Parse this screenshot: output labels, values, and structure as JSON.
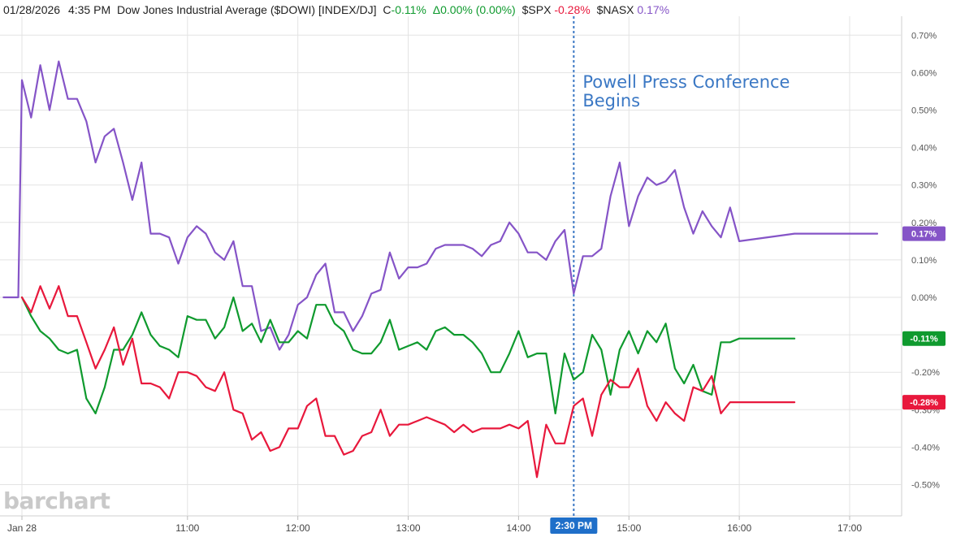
{
  "header": {
    "date": "01/28/2026",
    "time": "4:35 PM",
    "instrument": "Dow Jones Industrial Average ($DOWI) [INDEX/DJ]",
    "dowi_label": "C",
    "dowi_value": "-0.11%",
    "change_label": "Δ0.00% (0.00%)",
    "spx_label": "$SPX",
    "spx_value": "-0.28%",
    "nasx_label": "$NASX",
    "nasx_value": "0.17%"
  },
  "watermark": "barchart",
  "colors": {
    "dowi": "#0f9a2e",
    "spx": "#e8183c",
    "nasx": "#8554c7",
    "annotation": "#3b78c4",
    "marker_badge": "#1f6fc9",
    "grid": "#e3e3e3"
  },
  "chart_data": {
    "type": "line",
    "x_unit": "time (ET, 28 Jan)",
    "xlim": [
      "9:20",
      "17:30"
    ],
    "ylim": [
      -0.55,
      0.75
    ],
    "x_tick_labels": [
      "Jan 28",
      "11:00",
      "12:00",
      "13:00",
      "14:00",
      "15:00",
      "16:00",
      "17:00"
    ],
    "x_tick_times": [
      "9:30",
      "11:00",
      "12:00",
      "13:00",
      "14:00",
      "15:00",
      "16:00",
      "17:00"
    ],
    "y_tick_labels": [
      "0.70%",
      "0.60%",
      "0.50%",
      "0.40%",
      "0.30%",
      "0.20%",
      "0.10%",
      "0.00%",
      "-0.10%",
      "-0.20%",
      "-0.30%",
      "-0.40%",
      "-0.50%"
    ],
    "y_tick_values": [
      0.7,
      0.6,
      0.5,
      0.4,
      0.3,
      0.2,
      0.1,
      0.0,
      -0.1,
      -0.2,
      -0.3,
      -0.4,
      -0.5
    ],
    "grid": true,
    "annotation": {
      "text_lines": [
        "Powell Press Conference",
        "Begins"
      ],
      "time": "14:30",
      "badge": "2:30 PM"
    },
    "series": [
      {
        "name": "$NASX",
        "key": "nasx",
        "end_label": "0.17%",
        "x": [
          "9:20",
          "9:28",
          "9:30",
          "9:35",
          "9:40",
          "9:45",
          "9:50",
          "9:55",
          "10:00",
          "10:05",
          "10:10",
          "10:15",
          "10:20",
          "10:25",
          "10:30",
          "10:35",
          "10:40",
          "10:45",
          "10:50",
          "10:55",
          "11:00",
          "11:05",
          "11:10",
          "11:15",
          "11:20",
          "11:25",
          "11:30",
          "11:35",
          "11:40",
          "11:45",
          "11:50",
          "11:55",
          "12:00",
          "12:05",
          "12:10",
          "12:15",
          "12:20",
          "12:25",
          "12:30",
          "12:35",
          "12:40",
          "12:45",
          "12:50",
          "12:55",
          "13:00",
          "13:05",
          "13:10",
          "13:15",
          "13:20",
          "13:25",
          "13:30",
          "13:35",
          "13:40",
          "13:45",
          "13:50",
          "13:55",
          "14:00",
          "14:05",
          "14:10",
          "14:15",
          "14:20",
          "14:25",
          "14:30",
          "14:35",
          "14:40",
          "14:45",
          "14:50",
          "14:55",
          "15:00",
          "15:05",
          "15:10",
          "15:15",
          "15:20",
          "15:25",
          "15:30",
          "15:35",
          "15:40",
          "15:45",
          "15:50",
          "15:55",
          "16:00",
          "16:30",
          "17:00",
          "17:15"
        ],
        "y": [
          0.0,
          0.0,
          0.58,
          0.48,
          0.62,
          0.5,
          0.63,
          0.53,
          0.53,
          0.47,
          0.36,
          0.43,
          0.45,
          0.36,
          0.26,
          0.36,
          0.17,
          0.17,
          0.16,
          0.09,
          0.16,
          0.19,
          0.17,
          0.12,
          0.1,
          0.15,
          0.03,
          0.03,
          -0.09,
          -0.08,
          -0.14,
          -0.1,
          -0.02,
          0.0,
          0.06,
          0.09,
          -0.04,
          -0.04,
          -0.09,
          -0.05,
          0.01,
          0.02,
          0.12,
          0.05,
          0.08,
          0.08,
          0.09,
          0.13,
          0.14,
          0.14,
          0.14,
          0.13,
          0.11,
          0.14,
          0.15,
          0.2,
          0.17,
          0.12,
          0.12,
          0.1,
          0.15,
          0.18,
          0.01,
          0.11,
          0.11,
          0.13,
          0.27,
          0.36,
          0.19,
          0.27,
          0.32,
          0.3,
          0.31,
          0.34,
          0.24,
          0.17,
          0.23,
          0.19,
          0.16,
          0.24,
          0.15,
          0.17,
          0.17,
          0.17
        ]
      },
      {
        "name": "$DOWI",
        "key": "dowi",
        "end_label": "-0.11%",
        "x": [
          "9:30",
          "9:35",
          "9:40",
          "9:45",
          "9:50",
          "9:55",
          "10:00",
          "10:05",
          "10:10",
          "10:15",
          "10:20",
          "10:25",
          "10:30",
          "10:35",
          "10:40",
          "10:45",
          "10:50",
          "10:55",
          "11:00",
          "11:05",
          "11:10",
          "11:15",
          "11:20",
          "11:25",
          "11:30",
          "11:35",
          "11:40",
          "11:45",
          "11:50",
          "11:55",
          "12:00",
          "12:05",
          "12:10",
          "12:15",
          "12:20",
          "12:25",
          "12:30",
          "12:35",
          "12:40",
          "12:45",
          "12:50",
          "12:55",
          "13:00",
          "13:05",
          "13:10",
          "13:15",
          "13:20",
          "13:25",
          "13:30",
          "13:35",
          "13:40",
          "13:45",
          "13:50",
          "13:55",
          "14:00",
          "14:05",
          "14:10",
          "14:15",
          "14:20",
          "14:25",
          "14:30",
          "14:35",
          "14:40",
          "14:45",
          "14:50",
          "14:55",
          "15:00",
          "15:05",
          "15:10",
          "15:15",
          "15:20",
          "15:25",
          "15:30",
          "15:35",
          "15:40",
          "15:45",
          "15:50",
          "15:55",
          "16:00",
          "16:30"
        ],
        "y": [
          0.0,
          -0.05,
          -0.09,
          -0.11,
          -0.14,
          -0.15,
          -0.14,
          -0.27,
          -0.31,
          -0.24,
          -0.14,
          -0.14,
          -0.1,
          -0.04,
          -0.1,
          -0.13,
          -0.14,
          -0.16,
          -0.05,
          -0.06,
          -0.06,
          -0.11,
          -0.08,
          0.0,
          -0.09,
          -0.07,
          -0.12,
          -0.06,
          -0.12,
          -0.12,
          -0.09,
          -0.11,
          -0.02,
          -0.02,
          -0.07,
          -0.09,
          -0.14,
          -0.15,
          -0.15,
          -0.12,
          -0.06,
          -0.14,
          -0.13,
          -0.12,
          -0.14,
          -0.09,
          -0.08,
          -0.1,
          -0.1,
          -0.12,
          -0.15,
          -0.2,
          -0.2,
          -0.15,
          -0.09,
          -0.16,
          -0.15,
          -0.15,
          -0.31,
          -0.15,
          -0.22,
          -0.2,
          -0.1,
          -0.14,
          -0.26,
          -0.14,
          -0.09,
          -0.15,
          -0.09,
          -0.12,
          -0.07,
          -0.19,
          -0.23,
          -0.18,
          -0.25,
          -0.26,
          -0.12,
          -0.12,
          -0.11,
          -0.11
        ]
      },
      {
        "name": "$SPX",
        "key": "spx",
        "end_label": "-0.28%",
        "x": [
          "9:30",
          "9:35",
          "9:40",
          "9:45",
          "9:50",
          "9:55",
          "10:00",
          "10:05",
          "10:10",
          "10:15",
          "10:20",
          "10:25",
          "10:30",
          "10:35",
          "10:40",
          "10:45",
          "10:50",
          "10:55",
          "11:00",
          "11:05",
          "11:10",
          "11:15",
          "11:20",
          "11:25",
          "11:30",
          "11:35",
          "11:40",
          "11:45",
          "11:50",
          "11:55",
          "12:00",
          "12:05",
          "12:10",
          "12:15",
          "12:20",
          "12:25",
          "12:30",
          "12:35",
          "12:40",
          "12:45",
          "12:50",
          "12:55",
          "13:00",
          "13:05",
          "13:10",
          "13:15",
          "13:20",
          "13:25",
          "13:30",
          "13:35",
          "13:40",
          "13:45",
          "13:50",
          "13:55",
          "14:00",
          "14:05",
          "14:10",
          "14:15",
          "14:20",
          "14:25",
          "14:30",
          "14:35",
          "14:40",
          "14:45",
          "14:50",
          "14:55",
          "15:00",
          "15:05",
          "15:10",
          "15:15",
          "15:20",
          "15:25",
          "15:30",
          "15:35",
          "15:40",
          "15:45",
          "15:50",
          "15:55",
          "16:00",
          "16:30"
        ],
        "y": [
          0.0,
          -0.04,
          0.03,
          -0.03,
          0.03,
          -0.05,
          -0.05,
          -0.12,
          -0.19,
          -0.14,
          -0.08,
          -0.18,
          -0.11,
          -0.23,
          -0.23,
          -0.24,
          -0.27,
          -0.2,
          -0.2,
          -0.21,
          -0.24,
          -0.25,
          -0.2,
          -0.3,
          -0.31,
          -0.38,
          -0.36,
          -0.41,
          -0.4,
          -0.35,
          -0.35,
          -0.29,
          -0.27,
          -0.37,
          -0.37,
          -0.42,
          -0.41,
          -0.37,
          -0.36,
          -0.3,
          -0.37,
          -0.34,
          -0.34,
          -0.33,
          -0.32,
          -0.33,
          -0.34,
          -0.36,
          -0.34,
          -0.36,
          -0.35,
          -0.35,
          -0.35,
          -0.34,
          -0.35,
          -0.33,
          -0.48,
          -0.34,
          -0.39,
          -0.39,
          -0.29,
          -0.27,
          -0.37,
          -0.26,
          -0.22,
          -0.24,
          -0.24,
          -0.19,
          -0.29,
          -0.33,
          -0.28,
          -0.31,
          -0.33,
          -0.24,
          -0.25,
          -0.21,
          -0.31,
          -0.28,
          -0.28,
          -0.28
        ]
      }
    ]
  }
}
